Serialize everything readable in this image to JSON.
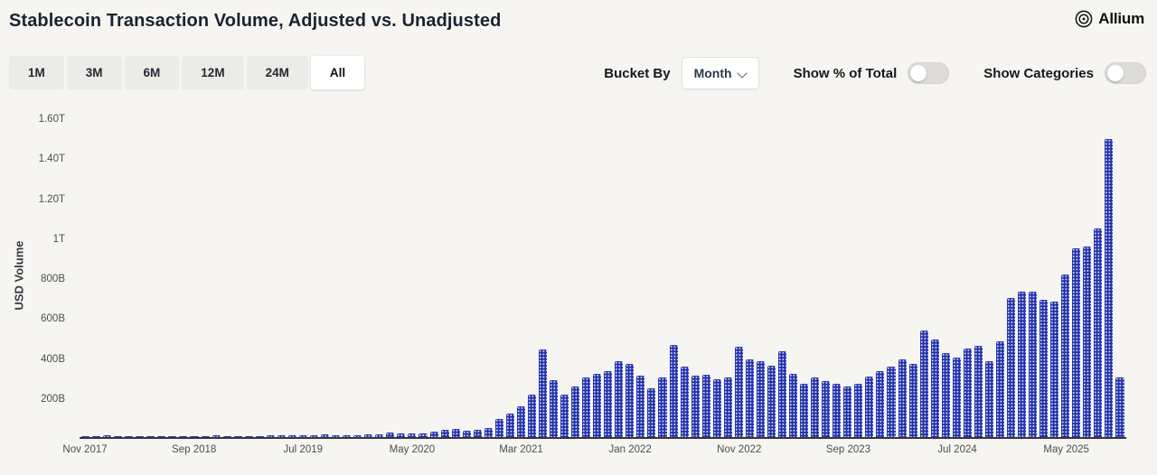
{
  "header": {
    "title": "Stablecoin Transaction Volume, Adjusted vs. Unadjusted",
    "brand": "Allium"
  },
  "controls": {
    "ranges": [
      {
        "label": "1M",
        "selected": false
      },
      {
        "label": "3M",
        "selected": false
      },
      {
        "label": "6M",
        "selected": false
      },
      {
        "label": "12M",
        "selected": false
      },
      {
        "label": "24M",
        "selected": false
      },
      {
        "label": "All",
        "selected": true
      }
    ],
    "bucket_by_label": "Bucket By",
    "bucket_value": "Month",
    "show_pct_label": "Show % of Total",
    "show_pct_on": false,
    "show_categories_label": "Show Categories",
    "show_categories_on": false
  },
  "chart_data": {
    "type": "bar",
    "title": "Stablecoin Transaction Volume, Adjusted vs. Unadjusted",
    "ylabel": "USD Volume",
    "unit": "billions USD per month",
    "bucket": "month",
    "ylim": [
      0,
      1600
    ],
    "y_tick_values": [
      200,
      400,
      600,
      800,
      1000,
      1200,
      1400,
      1600
    ],
    "y_tick_labels": [
      "200B",
      "400B",
      "600B",
      "800B",
      "1T",
      "1.20T",
      "1.40T",
      "1.60T"
    ],
    "x_tick_labels": [
      "Nov 2017",
      "Sep 2018",
      "Jul 2019",
      "May 2020",
      "Mar 2021",
      "Jan 2022",
      "Nov 2022",
      "Sep 2023",
      "Jul 2024",
      "May 2025"
    ],
    "x_tick_every_months": 10,
    "x_start_month": "Nov 2017",
    "values_billions": [
      2,
      5,
      7,
      5,
      4,
      3,
      3,
      3,
      3,
      4,
      5,
      6,
      7,
      6,
      5,
      5,
      6,
      8,
      10,
      11,
      11,
      11,
      12,
      11,
      11,
      10,
      13,
      15,
      24,
      19,
      19,
      20,
      26,
      36,
      40,
      33,
      38,
      46,
      90,
      120,
      155,
      215,
      440,
      285,
      215,
      255,
      300,
      320,
      330,
      380,
      370,
      310,
      245,
      300,
      465,
      355,
      310,
      315,
      290,
      300,
      455,
      390,
      380,
      360,
      430,
      320,
      270,
      300,
      280,
      270,
      255,
      270,
      305,
      330,
      355,
      390,
      370,
      535,
      490,
      425,
      400,
      445,
      460,
      380,
      480,
      700,
      730,
      730,
      690,
      680,
      820,
      950,
      960,
      1050,
      1500,
      300
    ],
    "bar_color": "#2130ad",
    "bar_pattern": "white-dots",
    "grid": false,
    "legend": "none"
  }
}
